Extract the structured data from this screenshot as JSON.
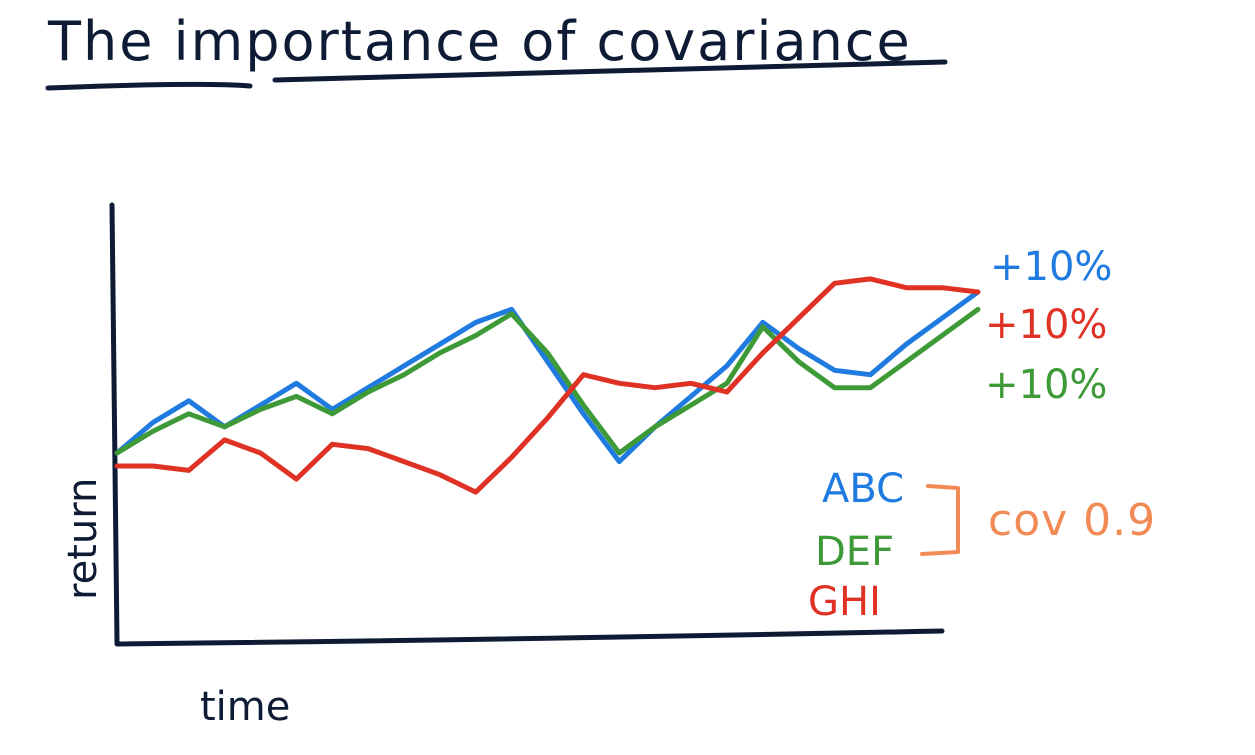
{
  "chart_data": {
    "type": "line",
    "title": "The importance of covariance",
    "xlabel": "time",
    "ylabel": "return",
    "x": [
      0,
      1,
      2,
      3,
      4,
      5,
      6,
      7,
      8,
      9,
      10,
      11,
      12,
      13,
      14,
      15,
      16,
      17,
      18,
      19,
      20,
      21,
      22,
      23,
      24
    ],
    "ylim": [
      0,
      10
    ],
    "xlim": [
      0,
      24
    ],
    "grid": false,
    "series": [
      {
        "name": "ABC",
        "color": "#1f7be0",
        "end_label": "+10%",
        "values": [
          4.3,
          5.0,
          5.5,
          4.9,
          5.4,
          5.9,
          5.3,
          5.8,
          6.3,
          6.8,
          7.3,
          7.6,
          6.4,
          5.2,
          4.1,
          4.9,
          5.6,
          6.3,
          7.3,
          6.7,
          6.2,
          6.1,
          6.8,
          7.4,
          8.0
        ]
      },
      {
        "name": "DEF",
        "color": "#3e9a37",
        "end_label": "+10%",
        "values": [
          4.3,
          4.8,
          5.2,
          4.9,
          5.3,
          5.6,
          5.2,
          5.7,
          6.1,
          6.6,
          7.0,
          7.5,
          6.6,
          5.4,
          4.3,
          4.9,
          5.4,
          5.9,
          7.2,
          6.4,
          5.8,
          5.8,
          6.4,
          7.0,
          7.6
        ]
      },
      {
        "name": "GHI",
        "color": "#e03125",
        "end_label": "+10%",
        "values": [
          4.0,
          4.0,
          3.9,
          4.6,
          4.3,
          3.7,
          4.5,
          4.4,
          4.1,
          3.8,
          3.4,
          4.2,
          5.1,
          6.1,
          5.9,
          5.8,
          5.9,
          5.7,
          6.6,
          7.4,
          8.2,
          8.3,
          8.1,
          8.1,
          8.0
        ]
      }
    ],
    "annotations": {
      "bracket_label": "cov 0.9",
      "bracket_series": [
        "ABC",
        "DEF"
      ],
      "bracket_color": "#f28a55"
    }
  },
  "ui": {
    "title": "The importance of covariance",
    "xlabel": "time",
    "ylabel": "return",
    "legend": [
      {
        "name": "ABC",
        "color": "#1f7be0"
      },
      {
        "name": "DEF",
        "color": "#3e9a37"
      },
      {
        "name": "GHI",
        "color": "#e03125"
      }
    ],
    "end_labels": [
      {
        "text": "+10%",
        "color": "#1f7be0"
      },
      {
        "text": "+10%",
        "color": "#e03125"
      },
      {
        "text": "+10%",
        "color": "#3e9a37"
      }
    ],
    "cov_label": "cov 0.9",
    "colors": {
      "ink": "#0d1b35",
      "accent": "#f28a55"
    }
  }
}
